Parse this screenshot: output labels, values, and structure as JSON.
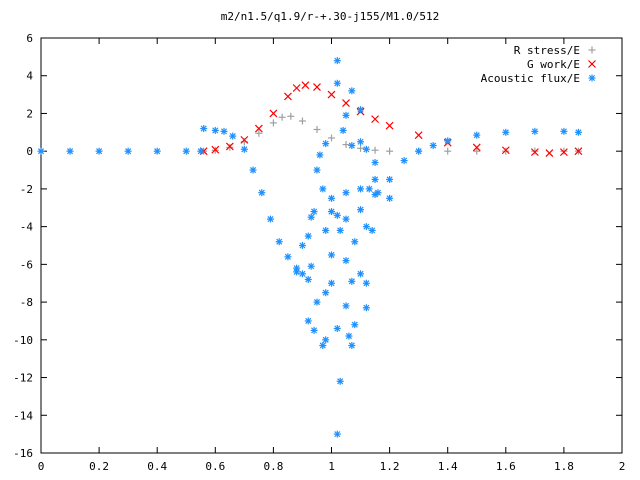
{
  "chart_data": {
    "type": "scatter",
    "title": "m2/n1.5/q1.9/r-+.30-j155/M1.0/512",
    "xlabel": "",
    "ylabel": "",
    "xlim": [
      0,
      2
    ],
    "ylim": [
      -16,
      6
    ],
    "x_ticks": [
      "0",
      "0.2",
      "0.4",
      "0.6",
      "0.8",
      "1",
      "1.2",
      "1.4",
      "1.6",
      "1.8",
      "2"
    ],
    "y_ticks": [
      "6",
      "4",
      "2",
      "0",
      "-2",
      "-4",
      "-6",
      "-8",
      "-10",
      "-12",
      "-14",
      "-16"
    ],
    "grid": false,
    "legend_position": "top-right",
    "series": [
      {
        "name": "R stress/E",
        "marker": "+",
        "color": "#a0a0a0",
        "points": [
          [
            0.56,
            0.0
          ],
          [
            0.6,
            0.05
          ],
          [
            0.65,
            0.2
          ],
          [
            0.7,
            0.5
          ],
          [
            0.75,
            0.95
          ],
          [
            0.8,
            1.5
          ],
          [
            0.83,
            1.8
          ],
          [
            0.86,
            1.85
          ],
          [
            0.9,
            1.6
          ],
          [
            0.95,
            1.15
          ],
          [
            1.0,
            0.7
          ],
          [
            1.05,
            0.35
          ],
          [
            1.1,
            0.15
          ],
          [
            1.15,
            0.05
          ],
          [
            1.2,
            0.0
          ],
          [
            1.3,
            0.0
          ],
          [
            1.4,
            0.0
          ],
          [
            1.5,
            0.0
          ],
          [
            1.6,
            0.0
          ],
          [
            1.7,
            0.0
          ],
          [
            1.8,
            0.0
          ],
          [
            1.85,
            0.0
          ]
        ]
      },
      {
        "name": "G work/E",
        "marker": "x",
        "color": "#ff0000",
        "points": [
          [
            0.56,
            0.0
          ],
          [
            0.6,
            0.08
          ],
          [
            0.65,
            0.25
          ],
          [
            0.7,
            0.6
          ],
          [
            0.75,
            1.2
          ],
          [
            0.8,
            2.0
          ],
          [
            0.85,
            2.9
          ],
          [
            0.88,
            3.35
          ],
          [
            0.91,
            3.5
          ],
          [
            0.95,
            3.4
          ],
          [
            1.0,
            3.0
          ],
          [
            1.05,
            2.55
          ],
          [
            1.1,
            2.1
          ],
          [
            1.15,
            1.7
          ],
          [
            1.2,
            1.35
          ],
          [
            1.3,
            0.85
          ],
          [
            1.4,
            0.45
          ],
          [
            1.5,
            0.2
          ],
          [
            1.6,
            0.05
          ],
          [
            1.7,
            -0.05
          ],
          [
            1.75,
            -0.1
          ],
          [
            1.8,
            -0.05
          ],
          [
            1.85,
            0.0
          ]
        ]
      },
      {
        "name": "Acoustic flux/E",
        "marker": "*",
        "color": "#1e90ff",
        "points": [
          [
            0.0,
            0.0
          ],
          [
            0.1,
            0.0
          ],
          [
            0.2,
            0.0
          ],
          [
            0.3,
            0.0
          ],
          [
            0.4,
            0.0
          ],
          [
            0.5,
            0.0
          ],
          [
            0.55,
            0.0
          ],
          [
            0.56,
            1.2
          ],
          [
            0.6,
            1.1
          ],
          [
            0.63,
            1.05
          ],
          [
            0.66,
            0.8
          ],
          [
            0.7,
            0.1
          ],
          [
            0.73,
            -1.0
          ],
          [
            0.76,
            -2.2
          ],
          [
            0.79,
            -3.6
          ],
          [
            0.82,
            -4.8
          ],
          [
            0.85,
            -5.6
          ],
          [
            0.88,
            -6.2
          ],
          [
            0.9,
            -6.5
          ],
          [
            1.0,
            -3.2
          ],
          [
            1.05,
            -2.2
          ],
          [
            1.1,
            -2.0
          ],
          [
            1.13,
            -2.0
          ],
          [
            1.16,
            -2.2
          ],
          [
            1.2,
            -1.5
          ],
          [
            1.25,
            -0.5
          ],
          [
            1.3,
            0.0
          ],
          [
            1.35,
            0.3
          ],
          [
            1.4,
            0.55
          ],
          [
            1.5,
            0.85
          ],
          [
            1.6,
            1.0
          ],
          [
            1.7,
            1.05
          ],
          [
            1.8,
            1.05
          ],
          [
            1.85,
            1.0
          ],
          [
            1.02,
            4.8
          ],
          [
            1.02,
            3.6
          ],
          [
            1.07,
            3.2
          ],
          [
            1.1,
            2.2
          ],
          [
            1.05,
            1.9
          ],
          [
            1.04,
            1.1
          ],
          [
            1.1,
            0.5
          ],
          [
            0.98,
            0.4
          ],
          [
            1.07,
            0.3
          ],
          [
            1.12,
            0.1
          ],
          [
            0.96,
            -0.2
          ],
          [
            1.15,
            -0.6
          ],
          [
            1.15,
            -1.5
          ],
          [
            1.15,
            -2.3
          ],
          [
            1.2,
            -2.5
          ],
          [
            0.95,
            -1.0
          ],
          [
            0.97,
            -2.0
          ],
          [
            1.0,
            -2.5
          ],
          [
            0.94,
            -3.2
          ],
          [
            1.1,
            -3.1
          ],
          [
            1.02,
            -3.4
          ],
          [
            0.93,
            -3.5
          ],
          [
            1.05,
            -3.6
          ],
          [
            0.98,
            -4.2
          ],
          [
            1.12,
            -4.0
          ],
          [
            1.14,
            -4.2
          ],
          [
            1.03,
            -4.2
          ],
          [
            0.92,
            -4.5
          ],
          [
            1.08,
            -4.8
          ],
          [
            0.9,
            -5.0
          ],
          [
            1.0,
            -5.5
          ],
          [
            1.05,
            -5.8
          ],
          [
            0.93,
            -6.1
          ],
          [
            0.88,
            -6.4
          ],
          [
            1.1,
            -6.5
          ],
          [
            0.92,
            -6.8
          ],
          [
            1.0,
            -7.0
          ],
          [
            1.07,
            -6.9
          ],
          [
            1.12,
            -7.0
          ],
          [
            0.98,
            -7.5
          ],
          [
            0.95,
            -8.0
          ],
          [
            1.05,
            -8.2
          ],
          [
            1.12,
            -8.3
          ],
          [
            0.92,
            -9.0
          ],
          [
            1.02,
            -9.4
          ],
          [
            1.08,
            -9.2
          ],
          [
            0.94,
            -9.5
          ],
          [
            0.98,
            -10.0
          ],
          [
            1.06,
            -9.8
          ],
          [
            0.97,
            -10.3
          ],
          [
            1.07,
            -10.3
          ],
          [
            1.03,
            -12.2
          ],
          [
            1.02,
            -15.0
          ]
        ]
      }
    ]
  }
}
